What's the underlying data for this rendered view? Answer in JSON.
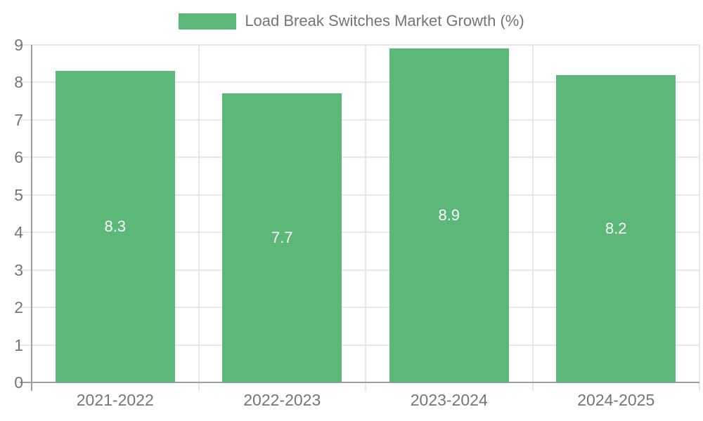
{
  "legend": {
    "label": "Load Break Switches Market Growth (%)"
  },
  "chart_data": {
    "type": "bar",
    "title": "Load Break Switches Market Growth (%)",
    "series_name": "Load Break Switches Market Growth (%)",
    "categories": [
      "2021-2022",
      "2022-2023",
      "2023-2024",
      "2024-2025"
    ],
    "values": [
      8.3,
      7.7,
      8.9,
      8.2
    ],
    "value_labels": [
      "8.3",
      "7.7",
      "8.9",
      "8.2"
    ],
    "xlabel": "",
    "ylabel": "",
    "ylim": [
      0,
      9
    ],
    "yticks": [
      0,
      1,
      2,
      3,
      4,
      5,
      6,
      7,
      8,
      9
    ],
    "grid": true,
    "legend_position": "top-center",
    "colors": {
      "bar": "#5cb878",
      "value_label": "#ffffff",
      "axis": "#9e9e9e",
      "grid": "#e8e8e8",
      "text": "#757575",
      "background": "#ffffff"
    }
  }
}
